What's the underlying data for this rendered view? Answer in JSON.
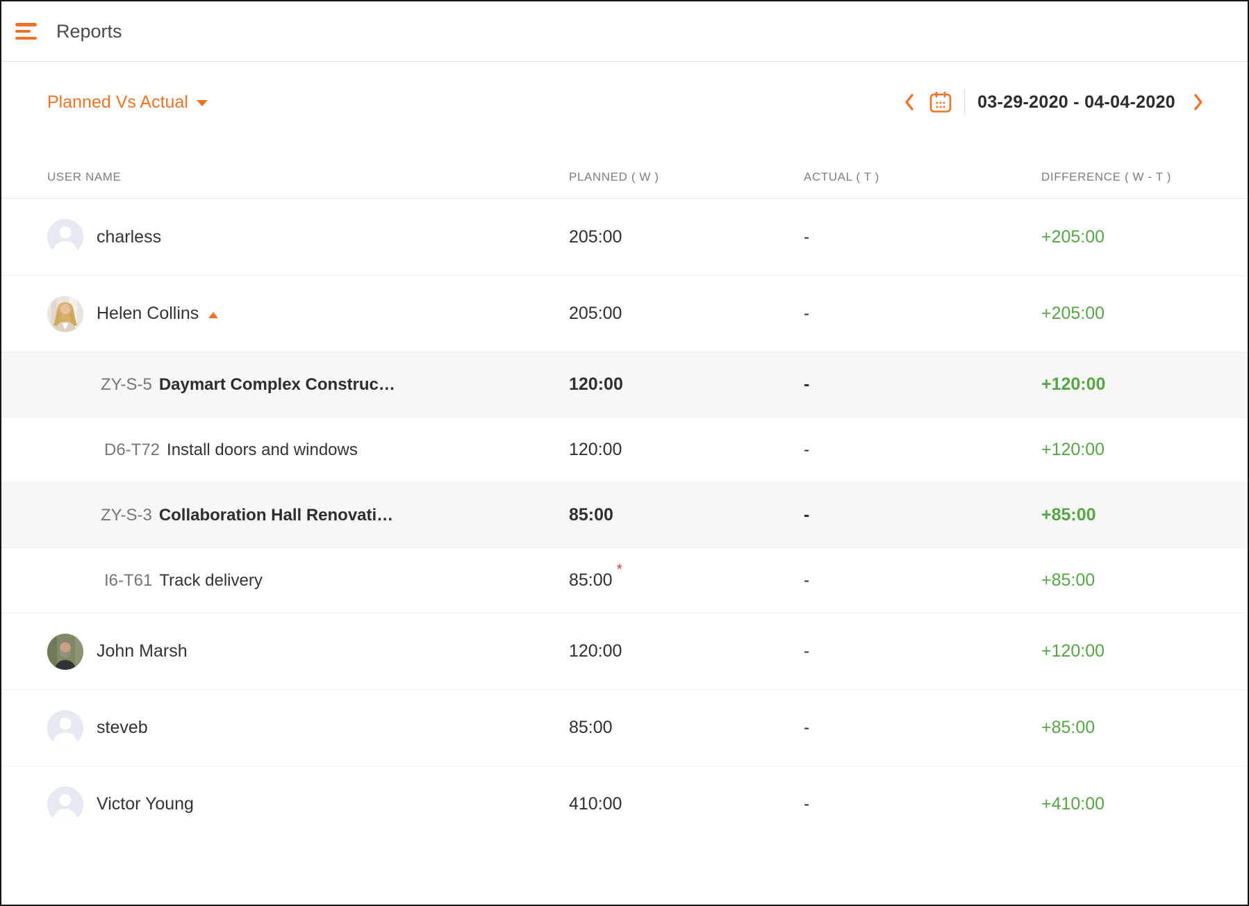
{
  "topbar": {
    "title": "Reports"
  },
  "toolbar": {
    "report_selector": {
      "label": "Planned Vs Actual"
    },
    "date_nav": {
      "date_range": "03-29-2020 - 04-04-2020"
    }
  },
  "table": {
    "columns": [
      {
        "label": "USER NAME"
      },
      {
        "label": "PLANNED ( W )"
      },
      {
        "label": "ACTUAL ( T )"
      },
      {
        "label": "DIFFERENCE ( W - T )"
      }
    ],
    "rows": [
      {
        "type": "user",
        "name": "charless",
        "avatar": "silhouette",
        "planned": "205:00",
        "actual": "-",
        "difference": "+205:00"
      },
      {
        "type": "user",
        "name": "Helen Collins",
        "avatar": "woman-photo",
        "expanded": true,
        "planned": "205:00",
        "actual": "-",
        "difference": "+205:00"
      },
      {
        "type": "job",
        "code": "ZY-S-5",
        "label": "Daymart Complex Construc…",
        "planned": "120:00",
        "actual": "-",
        "difference": "+120:00"
      },
      {
        "type": "task",
        "code": "D6-T72",
        "label": "Install doors and windows",
        "planned": "120:00",
        "actual": "-",
        "difference": "+120:00"
      },
      {
        "type": "job",
        "code": "ZY-S-3",
        "label": "Collaboration Hall Renovati…",
        "planned": "85:00",
        "actual": "-",
        "difference": "+85:00"
      },
      {
        "type": "task",
        "code": "I6-T61",
        "label": "Track delivery",
        "planned": "85:00",
        "planned_flag": "*",
        "actual": "-",
        "difference": "+85:00"
      },
      {
        "type": "user",
        "name": "John Marsh",
        "avatar": "man-photo",
        "planned": "120:00",
        "actual": "-",
        "difference": "+120:00"
      },
      {
        "type": "user",
        "name": "steveb",
        "avatar": "silhouette",
        "planned": "85:00",
        "actual": "-",
        "difference": "+85:00"
      },
      {
        "type": "user",
        "name": "Victor Young",
        "avatar": "silhouette",
        "planned": "410:00",
        "actual": "-",
        "difference": "+410:00"
      }
    ]
  },
  "colors": {
    "accent_orange": "#ee7328",
    "positive_green": "#57a447",
    "flag_red": "#ef4136",
    "subrow_bg": "#f7f7f7",
    "header_text": "#7d7d7d"
  }
}
